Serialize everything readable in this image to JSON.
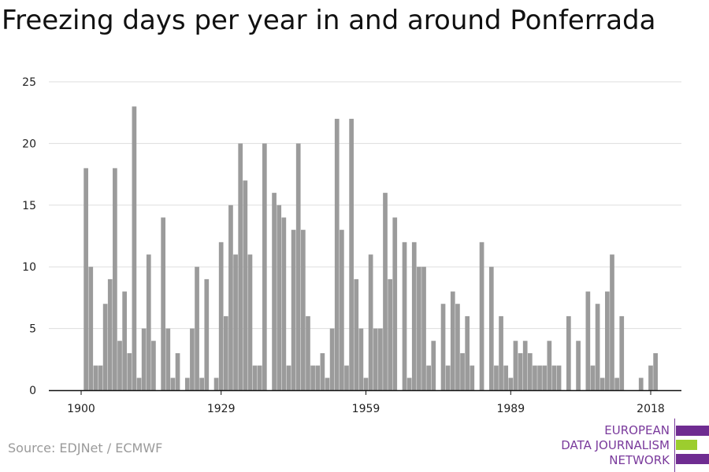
{
  "title": "Freezing days per year in and around Ponferrada",
  "source": "Source: EDJNet / ECMWF",
  "logo": {
    "lines": [
      "EUROPEAN",
      "DATA JOURNALISM",
      "NETWORK"
    ],
    "colors": {
      "purple": "#6f2c91",
      "green": "#9ccd2e"
    }
  },
  "colors": {
    "bar": "#9b9b9b",
    "grid": "#dddddd",
    "axis": "#111111",
    "text": "#222222"
  },
  "chart_data": {
    "type": "bar",
    "title": "Freezing days per year in and around Ponferrada",
    "xlabel": "",
    "ylabel": "",
    "ylim": [
      0,
      25
    ],
    "yticks": [
      0,
      5,
      10,
      15,
      20,
      25
    ],
    "xticks": [
      1900,
      1929,
      1959,
      1989,
      2018
    ],
    "grid": true,
    "series": [
      {
        "x": [
          1900,
          1901,
          1902,
          1903,
          1904,
          1905,
          1906,
          1907,
          1908,
          1909,
          1910,
          1911,
          1912,
          1913,
          1914,
          1915,
          1916,
          1917,
          1918,
          1919,
          1920,
          1921,
          1922,
          1923,
          1924,
          1925,
          1926,
          1927,
          1928,
          1929,
          1930,
          1931,
          1932,
          1933,
          1934,
          1935,
          1936,
          1937,
          1938,
          1939,
          1940,
          1941,
          1942,
          1943,
          1944,
          1945,
          1946,
          1947,
          1948,
          1949,
          1950,
          1951,
          1952,
          1953,
          1954,
          1955,
          1956,
          1957,
          1958,
          1959,
          1960,
          1961,
          1962,
          1963,
          1964,
          1965,
          1966,
          1967,
          1968,
          1969,
          1970,
          1971,
          1972,
          1973,
          1974,
          1975,
          1976,
          1977,
          1978,
          1979,
          1980,
          1981,
          1982,
          1983,
          1984,
          1985,
          1986,
          1987,
          1988,
          1989,
          1990,
          1991,
          1992,
          1993,
          1994,
          1995,
          1996,
          1997,
          1998,
          1999,
          2000,
          2001,
          2002,
          2003,
          2004,
          2005,
          2006,
          2007,
          2008,
          2009,
          2010,
          2011,
          2012,
          2013,
          2014,
          2015,
          2016,
          2017,
          2018,
          2019,
          2020
        ],
        "values": [
          0,
          18,
          10,
          2,
          2,
          7,
          9,
          18,
          4,
          8,
          3,
          23,
          1,
          5,
          11,
          4,
          0,
          14,
          5,
          1,
          3,
          0,
          1,
          5,
          10,
          1,
          9,
          0,
          1,
          12,
          6,
          15,
          11,
          20,
          17,
          11,
          2,
          2,
          20,
          0,
          16,
          15,
          14,
          2,
          13,
          20,
          13,
          6,
          2,
          2,
          3,
          1,
          5,
          22,
          13,
          2,
          22,
          9,
          5,
          1,
          11,
          5,
          5,
          16,
          9,
          14,
          0,
          12,
          1,
          12,
          10,
          10,
          2,
          4,
          0,
          7,
          2,
          8,
          7,
          3,
          6,
          2,
          0,
          12,
          0,
          10,
          2,
          6,
          2,
          1,
          4,
          3,
          4,
          3,
          2,
          2,
          2,
          4,
          2,
          2,
          0,
          6,
          0,
          4,
          0,
          8,
          2,
          7,
          1,
          8,
          11,
          1,
          6,
          0,
          0,
          0,
          1,
          0,
          2,
          3,
          0
        ]
      }
    ]
  }
}
